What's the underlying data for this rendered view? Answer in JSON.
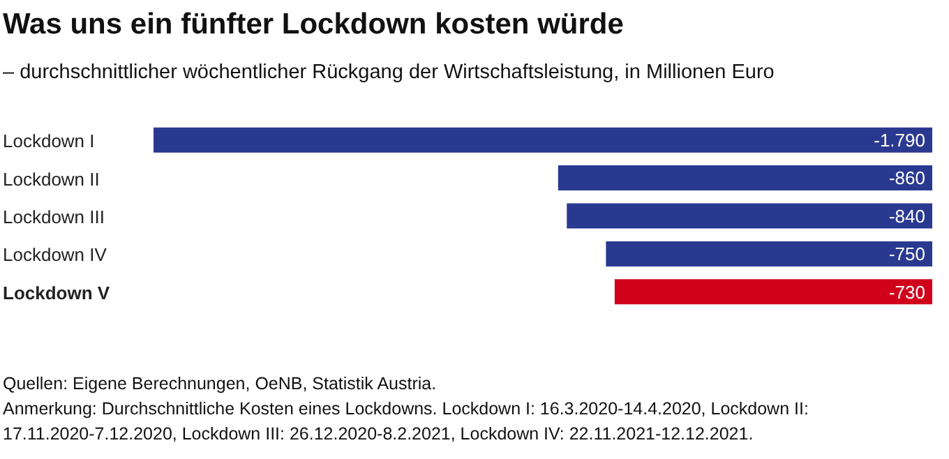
{
  "chart_data": {
    "type": "bar",
    "orientation": "horizontal",
    "title": "Was uns ein fünfter Lockdown kosten würde",
    "subtitle": "– durchschnittlicher wöchentlicher Rückgang der Wirtschaftsleistung, in Millionen Euro",
    "categories": [
      "Lockdown I",
      "Lockdown II",
      "Lockdown III",
      "Lockdown IV",
      "Lockdown V"
    ],
    "values": [
      -1790,
      -860,
      -840,
      -750,
      -730
    ],
    "colors": [
      "#2a3990",
      "#2a3990",
      "#2a3990",
      "#2a3990",
      "#d0021b"
    ],
    "value_labels": [
      "-1.790",
      "-860",
      "-840",
      "-750",
      "-730"
    ],
    "xlim": [
      -1790,
      0
    ],
    "tick_labels": "y",
    "grid": false,
    "legend": false,
    "annotations": [
      "Quellen: Eigene Berechnungen, OeNB, Statistik Austria.",
      "Anmerkung: Durchschnittliche Kosten eines Lockdowns. Lockdown I: 16.3.2020-14.4.2020, Lockdown II: 17.11.2020-7.12.2020, Lockdown III: 26.12.2020-8.2.2021, Lockdown IV: 22.11.2021-12.12.2021."
    ]
  }
}
